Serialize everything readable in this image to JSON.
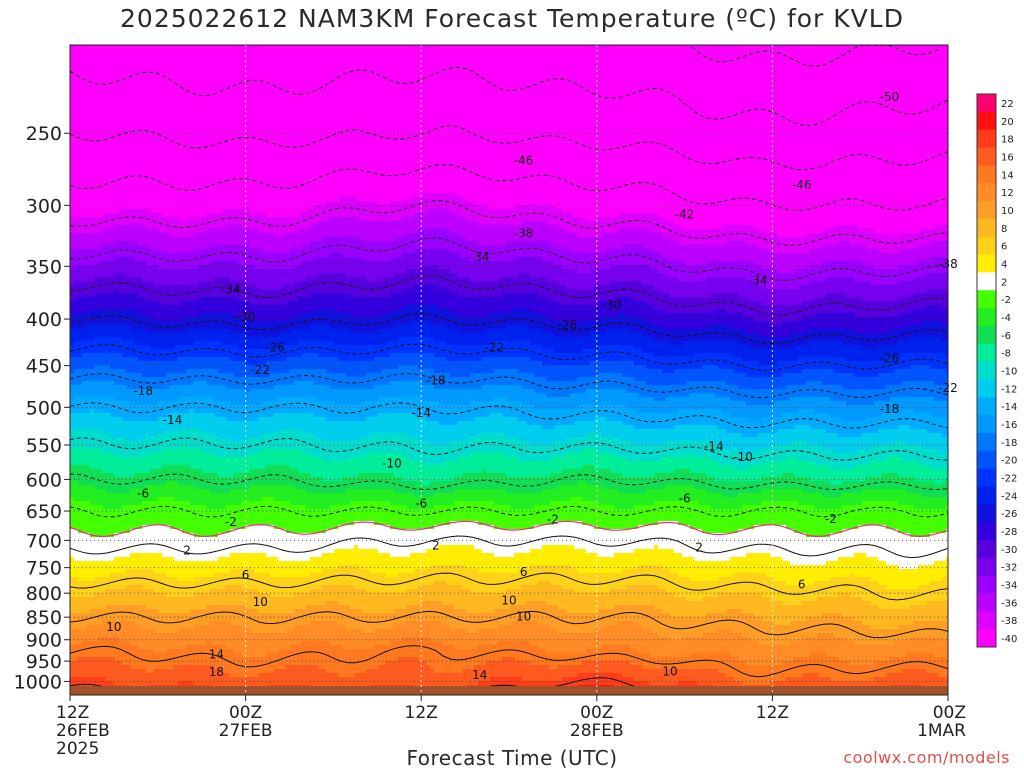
{
  "title": "2025022612 NAM3KM Forecast Temperature (ºC) for KVLD",
  "xlabel": "Forecast Time (UTC)",
  "credit": "coolwx.com/models",
  "chart_data": {
    "type": "heatmap",
    "title": "2025022612 NAM3KM Forecast Temperature (ºC) for KVLD",
    "xlabel": "Forecast Time (UTC)",
    "ylabel": "",
    "y_scale": "log-pressure (hPa), decreasing upward",
    "ylim": [
      1035,
      200
    ],
    "xlim": [
      0,
      60
    ],
    "grid": true,
    "x_ticks": [
      {
        "hour": 0,
        "lines": [
          "12Z",
          "26FEB",
          "2025"
        ]
      },
      {
        "hour": 12,
        "lines": [
          "00Z",
          "27FEB"
        ]
      },
      {
        "hour": 24,
        "lines": [
          "12Z"
        ]
      },
      {
        "hour": 36,
        "lines": [
          "00Z",
          "28FEB"
        ]
      },
      {
        "hour": 48,
        "lines": [
          "12Z"
        ]
      },
      {
        "hour": 60,
        "lines": [
          "00Z",
          "1MAR"
        ]
      }
    ],
    "y_ticks": [
      250,
      300,
      350,
      400,
      450,
      500,
      550,
      600,
      650,
      700,
      750,
      800,
      850,
      900,
      950,
      1000
    ],
    "surface_pressure_hpa": 1012,
    "colorbar": {
      "labels": [
        "22",
        "20",
        "18",
        "16",
        "14",
        "12",
        "10",
        "8",
        "6",
        "4",
        "2",
        "-2",
        "-4",
        "-6",
        "-8",
        "-10",
        "-12",
        "-14",
        "-16",
        "-18",
        "-20",
        "-22",
        "-24",
        "-26",
        "-28",
        "-30",
        "-32",
        "-34",
        "-36",
        "-38",
        "-40"
      ],
      "colors": [
        "#ff0070",
        "#ff1010",
        "#ff3d1a",
        "#ff5a1f",
        "#ff7a1f",
        "#ff8c26",
        "#ff9e26",
        "#ffb81f",
        "#ffd21a",
        "#ffee00",
        "#ffffff",
        "#44ff00",
        "#22ee22",
        "#11dd55",
        "#00ee99",
        "#00ddcc",
        "#00ccee",
        "#00aaff",
        "#0099ff",
        "#0077ff",
        "#0055ff",
        "#0033ff",
        "#0022ee",
        "#1111dd",
        "#3300dd",
        "#5500dd",
        "#7700ee",
        "#9900ff",
        "#bb00ff",
        "#dd00ff",
        "#ff00ff"
      ]
    },
    "profiles": [
      {
        "hour": 0,
        "temps": {
          "1000": 17,
          "925": 14,
          "850": 10,
          "700": 1,
          "650": -2,
          "600": -6,
          "500": -14,
          "400": -26,
          "300": -40,
          "250": -46,
          "200": -52
        }
      },
      {
        "hour": 12,
        "temps": {
          "1000": 16,
          "925": 13,
          "850": 10,
          "700": 1,
          "650": -2,
          "600": -6,
          "500": -14,
          "400": -27,
          "300": -40,
          "250": -47,
          "200": -53
        }
      },
      {
        "hour": 24,
        "temps": {
          "1000": 16,
          "925": 14,
          "850": 10,
          "700": 2,
          "650": -2,
          "600": -7,
          "500": -14,
          "400": -26,
          "300": -38,
          "250": -46,
          "200": -52
        }
      },
      {
        "hour": 36,
        "temps": {
          "1000": 18,
          "925": 13,
          "850": 10,
          "700": 2,
          "650": -2,
          "600": -6,
          "500": -15,
          "400": -27,
          "300": -40,
          "250": -47,
          "200": -53
        }
      },
      {
        "hour": 48,
        "temps": {
          "1000": 15,
          "925": 12,
          "850": 9,
          "700": 1,
          "650": -2,
          "600": -7,
          "500": -16,
          "400": -29,
          "300": -42,
          "250": -49,
          "200": -55
        }
      },
      {
        "hour": 60,
        "temps": {
          "1000": 16,
          "925": 12,
          "850": 8,
          "700": 1,
          "650": -2,
          "600": -7,
          "500": -16,
          "400": -28,
          "300": -42,
          "250": -48,
          "200": -54
        }
      }
    ],
    "contour_interval": 4,
    "freezing_line_color": "#ff2288",
    "contour_labels": [
      {
        "text": "-50",
        "hour": 56,
        "p": 228
      },
      {
        "text": "-46",
        "hour": 31,
        "p": 268
      },
      {
        "text": "-46",
        "hour": 50,
        "p": 285
      },
      {
        "text": "-42",
        "hour": 42,
        "p": 307
      },
      {
        "text": "-38",
        "hour": 31,
        "p": 322
      },
      {
        "text": "-38",
        "hour": 60,
        "p": 348
      },
      {
        "text": "-34",
        "hour": 28,
        "p": 342
      },
      {
        "text": "-34",
        "hour": 47,
        "p": 363
      },
      {
        "text": "-34",
        "hour": 11,
        "p": 371
      },
      {
        "text": "-30",
        "hour": 37,
        "p": 386
      },
      {
        "text": "-30",
        "hour": 12,
        "p": 398
      },
      {
        "text": "-26",
        "hour": 34,
        "p": 406
      },
      {
        "text": "-26",
        "hour": 14,
        "p": 430
      },
      {
        "text": "-26",
        "hour": 56,
        "p": 442
      },
      {
        "text": "-22",
        "hour": 29,
        "p": 430
      },
      {
        "text": "-22",
        "hour": 13,
        "p": 455
      },
      {
        "text": "-22",
        "hour": 60,
        "p": 476
      },
      {
        "text": "-18",
        "hour": 5,
        "p": 480
      },
      {
        "text": "-18",
        "hour": 25,
        "p": 467
      },
      {
        "text": "-18",
        "hour": 56,
        "p": 502
      },
      {
        "text": "-14",
        "hour": 7,
        "p": 516
      },
      {
        "text": "-14",
        "hour": 24,
        "p": 507
      },
      {
        "text": "-14",
        "hour": 44,
        "p": 552
      },
      {
        "text": "-10",
        "hour": 22,
        "p": 576
      },
      {
        "text": "-10",
        "hour": 46,
        "p": 567
      },
      {
        "text": "-6",
        "hour": 5,
        "p": 622
      },
      {
        "text": "-6",
        "hour": 24,
        "p": 638
      },
      {
        "text": "-6",
        "hour": 42,
        "p": 630
      },
      {
        "text": "-2",
        "hour": 11,
        "p": 668
      },
      {
        "text": "-2",
        "hour": 33,
        "p": 664
      },
      {
        "text": "-2",
        "hour": 52,
        "p": 663
      },
      {
        "text": "2",
        "hour": 8,
        "p": 718
      },
      {
        "text": "2",
        "hour": 25,
        "p": 709
      },
      {
        "text": "2",
        "hour": 43,
        "p": 713
      },
      {
        "text": "6",
        "hour": 12,
        "p": 764
      },
      {
        "text": "6",
        "hour": 31,
        "p": 758
      },
      {
        "text": "6",
        "hour": 50,
        "p": 783
      },
      {
        "text": "10",
        "hour": 13,
        "p": 818
      },
      {
        "text": "10",
        "hour": 30,
        "p": 815
      },
      {
        "text": "10",
        "hour": 31,
        "p": 849
      },
      {
        "text": "10",
        "hour": 3,
        "p": 871
      },
      {
        "text": "10",
        "hour": 41,
        "p": 975
      },
      {
        "text": "14",
        "hour": 10,
        "p": 934
      },
      {
        "text": "14",
        "hour": 28,
        "p": 984
      },
      {
        "text": "18",
        "hour": 10,
        "p": 977
      }
    ]
  }
}
